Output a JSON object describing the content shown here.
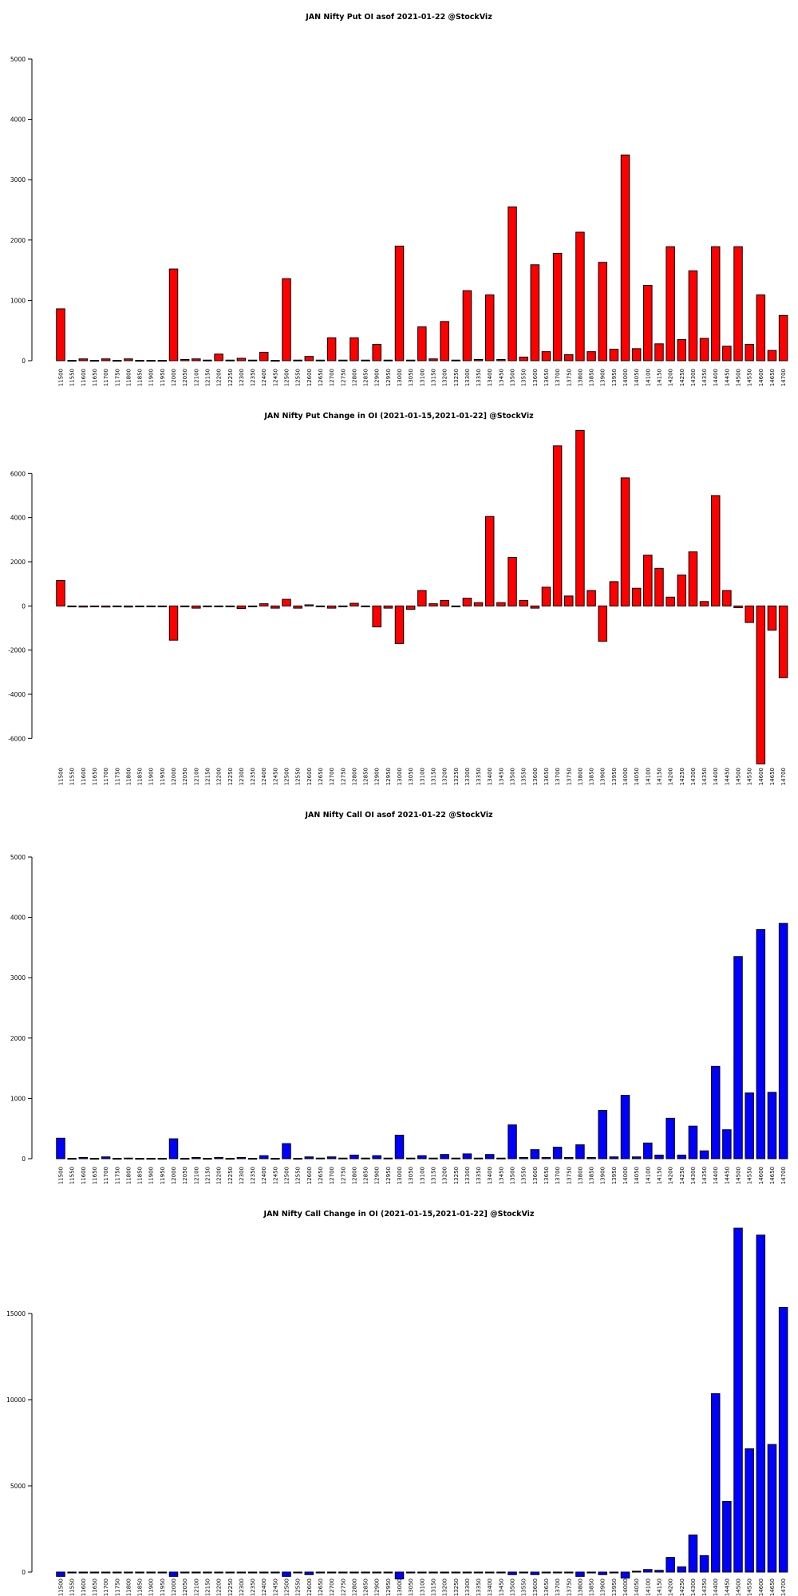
{
  "chart_data": [
    {
      "type": "bar",
      "title": "JAN Nifty Put OI asof 2021-01-22 @StockViz",
      "color": "#ff0000",
      "ylim": [
        0,
        5000
      ],
      "yticks": [
        0,
        1000,
        2000,
        3000,
        4000,
        5000
      ],
      "categories": [
        "11500",
        "11550",
        "11600",
        "11650",
        "11700",
        "11750",
        "11800",
        "11850",
        "11900",
        "11950",
        "12000",
        "12050",
        "12100",
        "12150",
        "12200",
        "12250",
        "12300",
        "12350",
        "12400",
        "12450",
        "12500",
        "12550",
        "12600",
        "12650",
        "12700",
        "12750",
        "12800",
        "12850",
        "12900",
        "12950",
        "13000",
        "13050",
        "13100",
        "13150",
        "13200",
        "13250",
        "13300",
        "13350",
        "13400",
        "13450",
        "13500",
        "13550",
        "13600",
        "13650",
        "13700",
        "13750",
        "13800",
        "13850",
        "13900",
        "13950",
        "14000",
        "14050",
        "14100",
        "14150",
        "14200",
        "14250",
        "14300",
        "14350",
        "14400",
        "14450",
        "14500",
        "14550",
        "14600",
        "14650",
        "14700"
      ],
      "values": [
        860,
        5,
        30,
        5,
        30,
        5,
        30,
        5,
        5,
        5,
        1520,
        20,
        30,
        10,
        110,
        10,
        40,
        10,
        140,
        5,
        1360,
        10,
        70,
        10,
        380,
        10,
        380,
        10,
        270,
        10,
        1900,
        10,
        560,
        30,
        650,
        10,
        1160,
        20,
        1090,
        20,
        2550,
        60,
        1590,
        150,
        1780,
        100,
        2130,
        150,
        1630,
        190,
        3410,
        200,
        1250,
        280,
        1890,
        350,
        1490,
        370,
        1890,
        240,
        1890,
        270,
        1090,
        170,
        750
      ]
    },
    {
      "type": "bar",
      "title": "JAN Nifty Put Change in OI (2021-01-15,2021-01-22] @StockViz",
      "color": "#ff0000",
      "ylim": [
        -7000,
        8000
      ],
      "yticks": [
        -6000,
        -4000,
        -2000,
        0,
        2000,
        4000,
        6000
      ],
      "categories": [
        "11500",
        "11550",
        "11600",
        "11650",
        "11700",
        "11750",
        "11800",
        "11850",
        "11900",
        "11950",
        "12000",
        "12050",
        "12100",
        "12150",
        "12200",
        "12250",
        "12300",
        "12350",
        "12400",
        "12450",
        "12500",
        "12550",
        "12600",
        "12650",
        "12700",
        "12750",
        "12800",
        "12850",
        "12900",
        "12950",
        "13000",
        "13050",
        "13100",
        "13150",
        "13200",
        "13250",
        "13300",
        "13350",
        "13400",
        "13450",
        "13500",
        "13550",
        "13600",
        "13650",
        "13700",
        "13750",
        "13800",
        "13850",
        "13900",
        "13950",
        "14000",
        "14050",
        "14100",
        "14150",
        "14200",
        "14250",
        "14300",
        "14350",
        "14400",
        "14450",
        "14500",
        "14550",
        "14600",
        "14650",
        "14700"
      ],
      "values": [
        1150,
        0,
        -50,
        -20,
        -50,
        -20,
        -50,
        0,
        0,
        0,
        -1550,
        -20,
        -100,
        -20,
        -20,
        -20,
        -120,
        0,
        100,
        -100,
        300,
        -100,
        50,
        -20,
        -100,
        0,
        120,
        0,
        -950,
        -100,
        -1700,
        -150,
        700,
        100,
        250,
        0,
        350,
        150,
        4050,
        150,
        2200,
        250,
        -100,
        850,
        7250,
        450,
        7950,
        700,
        -1600,
        1100,
        5800,
        800,
        2300,
        1700,
        400,
        1400,
        2450,
        200,
        5000,
        700,
        -80,
        -750,
        -7150,
        -1100,
        -3250
      ]
    },
    {
      "type": "bar",
      "title": "JAN Nifty Call OI asof 2021-01-22 @StockViz",
      "color": "#0000ff",
      "ylim": [
        0,
        5000
      ],
      "yticks": [
        0,
        1000,
        2000,
        3000,
        4000,
        5000
      ],
      "categories": [
        "11500",
        "11550",
        "11600",
        "11650",
        "11700",
        "11750",
        "11800",
        "11850",
        "11900",
        "11950",
        "12000",
        "12050",
        "12100",
        "12150",
        "12200",
        "12250",
        "12300",
        "12350",
        "12400",
        "12450",
        "12500",
        "12550",
        "12600",
        "12650",
        "12700",
        "12750",
        "12800",
        "12850",
        "12900",
        "12950",
        "13000",
        "13050",
        "13100",
        "13150",
        "13200",
        "13250",
        "13300",
        "13350",
        "13400",
        "13450",
        "13500",
        "13550",
        "13600",
        "13650",
        "13700",
        "13750",
        "13800",
        "13850",
        "13900",
        "13950",
        "14000",
        "14050",
        "14100",
        "14150",
        "14200",
        "14250",
        "14300",
        "14350",
        "14400",
        "14450",
        "14500",
        "14550",
        "14600",
        "14650",
        "14700"
      ],
      "values": [
        340,
        5,
        20,
        5,
        30,
        5,
        10,
        5,
        5,
        5,
        330,
        5,
        20,
        5,
        20,
        5,
        20,
        5,
        50,
        5,
        250,
        5,
        30,
        10,
        30,
        10,
        60,
        10,
        50,
        10,
        390,
        10,
        50,
        10,
        70,
        10,
        80,
        10,
        70,
        10,
        560,
        20,
        150,
        20,
        190,
        20,
        230,
        20,
        800,
        30,
        1050,
        30,
        260,
        60,
        670,
        60,
        540,
        130,
        1530,
        480,
        3350,
        1090,
        3800,
        1100,
        3900
      ]
    },
    {
      "type": "bar",
      "title": "JAN Nifty Call Change in OI (2021-01-15,2021-01-22] @StockViz",
      "color": "#0000ff",
      "ylim": [
        0,
        20000
      ],
      "yticks": [
        0,
        5000,
        10000,
        15000
      ],
      "categories": [
        "11500",
        "11550",
        "11600",
        "11650",
        "11700",
        "11750",
        "11800",
        "11850",
        "11900",
        "11950",
        "12000",
        "12050",
        "12100",
        "12150",
        "12200",
        "12250",
        "12300",
        "12350",
        "12400",
        "12450",
        "12500",
        "12550",
        "12600",
        "12650",
        "12700",
        "12750",
        "12800",
        "12850",
        "12900",
        "12950",
        "13000",
        "13050",
        "13100",
        "13150",
        "13200",
        "13250",
        "13300",
        "13350",
        "13400",
        "13450",
        "13500",
        "13550",
        "13600",
        "13650",
        "13700",
        "13750",
        "13800",
        "13850",
        "13900",
        "13950",
        "14000",
        "14050",
        "14100",
        "14150",
        "14200",
        "14250",
        "14300",
        "14350",
        "14400",
        "14450",
        "14500",
        "14550",
        "14600",
        "14650",
        "14700"
      ],
      "values": [
        -250,
        -50,
        -50,
        -50,
        -50,
        -50,
        -50,
        -50,
        -50,
        -50,
        -250,
        -50,
        -50,
        -50,
        -50,
        -50,
        -50,
        -50,
        -50,
        -50,
        -250,
        -50,
        -150,
        -50,
        -50,
        -50,
        -50,
        -50,
        -50,
        -50,
        -400,
        -50,
        -50,
        -50,
        -50,
        -50,
        -50,
        -50,
        -50,
        -50,
        -150,
        -50,
        -150,
        -50,
        -50,
        -50,
        -250,
        -50,
        -150,
        -50,
        -350,
        50,
        150,
        100,
        850,
        300,
        2150,
        950,
        10350,
        4100,
        19950,
        7150,
        19550,
        7400,
        15350
      ]
    }
  ]
}
